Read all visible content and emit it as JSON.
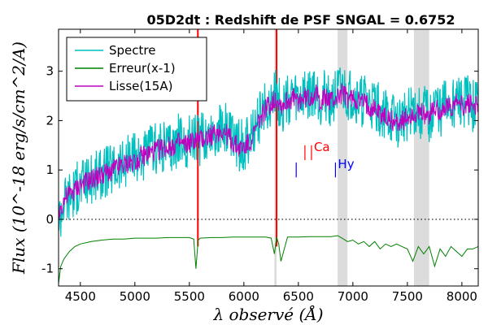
{
  "chart_data": {
    "type": "line",
    "title": "05D2dt : Redshift de PSF SNGAL = 0.6752",
    "xlabel": "λ observé (Å)",
    "ylabel": "Flux (10^-18 erg/s/cm^2/A)",
    "xlim": [
      4300,
      8150
    ],
    "ylim": [
      -1.35,
      3.85
    ],
    "xticks": [
      4500,
      5000,
      5500,
      6000,
      6500,
      7000,
      7500,
      8000
    ],
    "yticks": [
      -1,
      0,
      1,
      2,
      3
    ],
    "grid": false,
    "zero_line": true,
    "legend": {
      "position": "top-left",
      "entries": [
        {
          "label": "Spectre",
          "color": "#00bfbf"
        },
        {
          "label": "Erreur(x-1)",
          "color": "#008000"
        },
        {
          "label": "Lisse(15A)",
          "color": "#bf00bf"
        }
      ]
    },
    "series": [
      {
        "name": "Spectre",
        "color": "#00bfbf",
        "x": [
          4300,
          4350,
          4400,
          4450,
          4500,
          4550,
          4600,
          4650,
          4700,
          4750,
          4800,
          4850,
          4900,
          4950,
          5000,
          5050,
          5100,
          5150,
          5200,
          5250,
          5300,
          5350,
          5400,
          5450,
          5500,
          5550,
          5600,
          5650,
          5700,
          5750,
          5800,
          5850,
          5900,
          5950,
          6000,
          6050,
          6100,
          6150,
          6200,
          6250,
          6300,
          6350,
          6400,
          6450,
          6500,
          6550,
          6600,
          6650,
          6700,
          6750,
          6800,
          6850,
          6900,
          6950,
          7000,
          7050,
          7100,
          7150,
          7200,
          7250,
          7300,
          7350,
          7400,
          7450,
          7500,
          7550,
          7600,
          7650,
          7700,
          7750,
          7800,
          7850,
          7900,
          7950,
          8000,
          8050,
          8100,
          8150
        ],
        "y": [
          0.0,
          0.4,
          0.5,
          0.6,
          0.7,
          0.8,
          0.8,
          0.9,
          0.9,
          1.0,
          1.0,
          1.1,
          1.1,
          1.2,
          1.2,
          1.3,
          1.3,
          1.4,
          1.4,
          1.5,
          1.5,
          1.5,
          1.6,
          1.5,
          1.6,
          1.7,
          1.6,
          1.7,
          1.8,
          1.8,
          1.9,
          1.8,
          1.6,
          1.5,
          1.5,
          1.6,
          1.8,
          2.1,
          2.3,
          2.4,
          2.5,
          2.3,
          2.4,
          2.5,
          2.4,
          2.5,
          2.5,
          2.6,
          2.4,
          2.5,
          2.4,
          2.5,
          2.6,
          2.5,
          2.5,
          2.4,
          2.4,
          2.3,
          2.3,
          2.2,
          2.1,
          2.0,
          2.0,
          2.0,
          2.1,
          2.2,
          2.1,
          2.2,
          2.1,
          2.3,
          2.2,
          2.3,
          2.3,
          2.4,
          2.3,
          2.4,
          2.3,
          2.3
        ]
      },
      {
        "name": "Lisse(15A)",
        "color": "#bf00bf",
        "x": [
          4300,
          4350,
          4400,
          4450,
          4500,
          4550,
          4600,
          4650,
          4700,
          4750,
          4800,
          4850,
          4900,
          4950,
          5000,
          5050,
          5100,
          5150,
          5200,
          5250,
          5300,
          5350,
          5400,
          5450,
          5500,
          5550,
          5600,
          5650,
          5700,
          5750,
          5800,
          5850,
          5900,
          5950,
          6000,
          6050,
          6100,
          6150,
          6200,
          6250,
          6300,
          6350,
          6400,
          6450,
          6500,
          6550,
          6600,
          6650,
          6700,
          6750,
          6800,
          6850,
          6900,
          6950,
          7000,
          7050,
          7100,
          7150,
          7200,
          7250,
          7300,
          7350,
          7400,
          7450,
          7500,
          7550,
          7600,
          7650,
          7700,
          7750,
          7800,
          7850,
          7900,
          7950,
          8000,
          8050,
          8100,
          8150
        ],
        "y": [
          0.1,
          0.4,
          0.5,
          0.6,
          0.7,
          0.75,
          0.8,
          0.85,
          0.9,
          0.95,
          1.0,
          1.05,
          1.1,
          1.15,
          1.2,
          1.25,
          1.3,
          1.35,
          1.4,
          1.45,
          1.45,
          1.5,
          1.55,
          1.5,
          1.55,
          1.6,
          1.6,
          1.65,
          1.7,
          1.75,
          1.8,
          1.7,
          1.55,
          1.45,
          1.45,
          1.55,
          1.75,
          2.05,
          2.25,
          2.35,
          2.45,
          2.3,
          2.4,
          2.45,
          2.4,
          2.45,
          2.45,
          2.55,
          2.4,
          2.45,
          2.4,
          2.45,
          2.55,
          2.45,
          2.45,
          2.4,
          2.35,
          2.3,
          2.25,
          2.15,
          2.05,
          2.0,
          1.95,
          2.0,
          2.05,
          2.15,
          2.1,
          2.15,
          2.1,
          2.25,
          2.2,
          2.25,
          2.3,
          2.35,
          2.3,
          2.35,
          2.3,
          2.3
        ]
      },
      {
        "name": "Erreur(x-1)",
        "color": "#008000",
        "x": [
          4300,
          4320,
          4350,
          4400,
          4450,
          4500,
          4600,
          4700,
          4800,
          4900,
          5000,
          5100,
          5200,
          5300,
          5400,
          5500,
          5540,
          5560,
          5580,
          5600,
          5700,
          5800,
          5900,
          6000,
          6100,
          6200,
          6250,
          6280,
          6300,
          6320,
          6340,
          6400,
          6500,
          6600,
          6700,
          6800,
          6860,
          6900,
          6950,
          7000,
          7050,
          7100,
          7150,
          7200,
          7250,
          7300,
          7350,
          7400,
          7450,
          7500,
          7550,
          7600,
          7650,
          7700,
          7750,
          7800,
          7850,
          7900,
          7950,
          8000,
          8050,
          8100,
          8150
        ],
        "y": [
          -1.3,
          -0.95,
          -0.8,
          -0.65,
          -0.55,
          -0.5,
          -0.45,
          -0.42,
          -0.4,
          -0.4,
          -0.38,
          -0.38,
          -0.38,
          -0.37,
          -0.37,
          -0.37,
          -0.4,
          -1.0,
          -0.42,
          -0.38,
          -0.37,
          -0.37,
          -0.36,
          -0.36,
          -0.36,
          -0.36,
          -0.38,
          -0.7,
          -0.36,
          -0.5,
          -0.85,
          -0.36,
          -0.36,
          -0.35,
          -0.35,
          -0.35,
          -0.33,
          -0.38,
          -0.45,
          -0.42,
          -0.5,
          -0.45,
          -0.55,
          -0.45,
          -0.6,
          -0.5,
          -0.55,
          -0.5,
          -0.55,
          -0.6,
          -0.85,
          -0.55,
          -0.7,
          -0.55,
          -0.95,
          -0.6,
          -0.75,
          -0.55,
          -0.65,
          -0.75,
          -0.6,
          -0.6,
          -0.55
        ]
      }
    ],
    "shaded_bands": [
      [
        6280,
        6300
      ],
      [
        6860,
        6950
      ],
      [
        7560,
        7700
      ]
    ],
    "vertical_lines": [
      5578,
      6300
    ],
    "annotations": [
      {
        "label": "Ca",
        "color": "#ff0000",
        "marker_x": [
          6560,
          6620
        ],
        "x": 6620,
        "y": 1.45
      },
      {
        "label": "Hy",
        "color": "#0000ff",
        "marker_x": [
          6480,
          6840
        ],
        "x": 6840,
        "y": 1.1
      }
    ]
  }
}
